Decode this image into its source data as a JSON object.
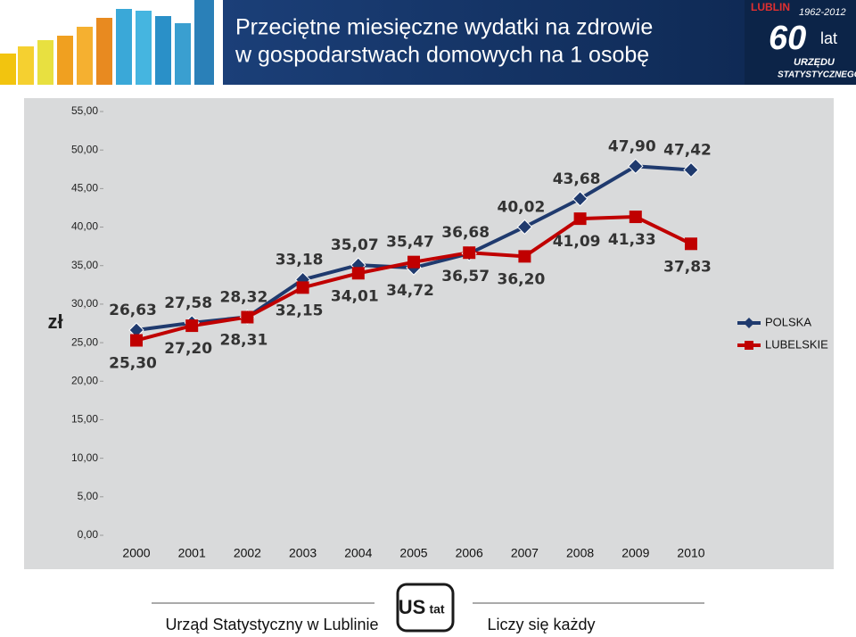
{
  "header": {
    "title": [
      "Przeciętne miesięczne wydatki na zdrowie",
      "w gospodarstwach domowych na 1 osobę"
    ],
    "logo": [
      "LUBLIN",
      "1962-2012",
      "60",
      "lat",
      "URZĘDU",
      "STATYSTYCZNEGO"
    ]
  },
  "chart_data": {
    "type": "line",
    "y_label": "zł",
    "categories": [
      "2000",
      "2001",
      "2002",
      "2003",
      "2004",
      "2005",
      "2006",
      "2007",
      "2008",
      "2009",
      "2010"
    ],
    "series": [
      {
        "name": "POLSKA",
        "color": "#1f3a6e",
        "marker": "diamond",
        "values": [
          26.63,
          27.58,
          28.32,
          33.18,
          35.07,
          34.72,
          36.57,
          40.02,
          43.68,
          47.9,
          47.42
        ],
        "value_labels": [
          "26,63",
          "27,58",
          "28,32",
          "33,18",
          "35,07",
          "34,72",
          "36,57",
          "40,02",
          "43,68",
          "47,90",
          "47,42"
        ]
      },
      {
        "name": "LUBELSKIE",
        "color": "#c00000",
        "marker": "square",
        "values": [
          25.3,
          27.2,
          28.31,
          32.15,
          34.01,
          35.47,
          36.68,
          36.2,
          41.09,
          41.33,
          37.83
        ],
        "value_labels": [
          "25,30",
          "27,20",
          "28,31",
          "32,15",
          "34,01",
          "35,47",
          "36,68",
          "36,20",
          "41,09",
          "41,33",
          "37,83"
        ]
      }
    ],
    "ylim": [
      0,
      55
    ],
    "yticks": [
      {
        "value": 0,
        "label": "0,00"
      },
      {
        "value": 5,
        "label": "5,00"
      },
      {
        "value": 10,
        "label": "10,00"
      },
      {
        "value": 15,
        "label": "15,00"
      },
      {
        "value": 20,
        "label": "20,00"
      },
      {
        "value": 25,
        "label": "25,00"
      },
      {
        "value": 30,
        "label": "30,00"
      },
      {
        "value": 35,
        "label": "35,00"
      },
      {
        "value": 40,
        "label": "40,00"
      },
      {
        "value": 45,
        "label": "45,00"
      },
      {
        "value": 50,
        "label": "50,00"
      },
      {
        "value": 55,
        "label": "55,00"
      }
    ],
    "legend": "right"
  },
  "footer": {
    "left": "Urząd Statystyczny w Lublinie",
    "logo": [
      "US",
      "tat"
    ],
    "right": "Liczy się każdy"
  }
}
